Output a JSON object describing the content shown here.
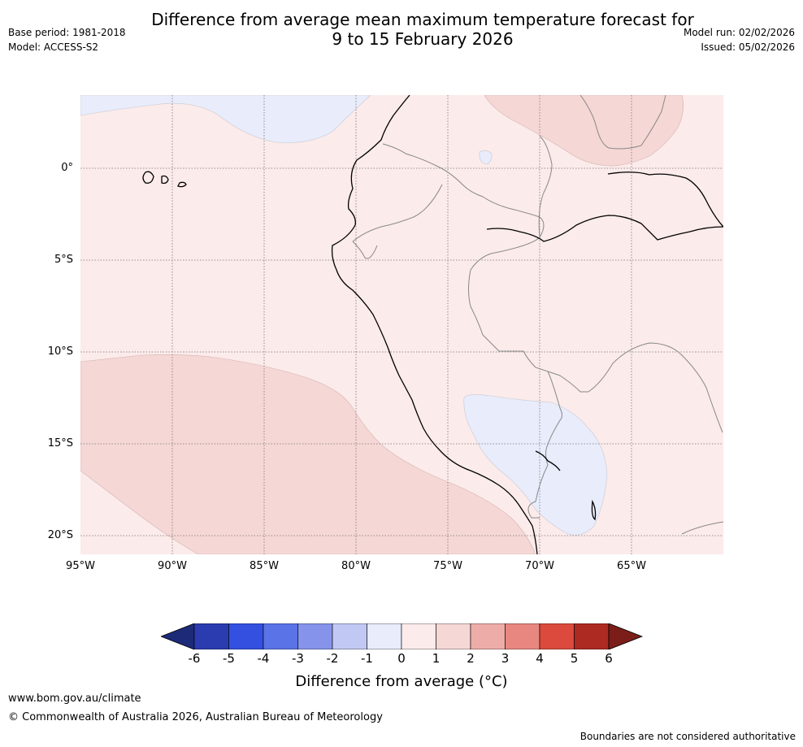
{
  "header": {
    "title_line1": "Difference from average mean maximum temperature forecast for",
    "title_line2": "9 to 15 February 2026",
    "base_period": "Base period: 1981-2018",
    "model": "Model: ACCESS-S2",
    "model_run": "Model run: 02/02/2026",
    "issued": "Issued: 05/02/2026"
  },
  "map": {
    "region": "Western South America",
    "latitude_labels": [
      "0°",
      "5°S",
      "10°S",
      "15°S",
      "20°S"
    ],
    "longitude_labels": [
      "95°W",
      "90°W",
      "85°W",
      "80°W",
      "75°W",
      "70°W",
      "65°W"
    ],
    "colors": {
      "background": "#fbebea",
      "anomaly_0_1": "#fbebea",
      "anomaly_1_2": "#f5d7d5",
      "anomaly_neg1_0": "#e8ecfb",
      "coastline": "#000000",
      "borders": "#888888",
      "grid": "#777777"
    }
  },
  "colorbar": {
    "tick_labels": [
      "-6",
      "-5",
      "-4",
      "-3",
      "-2",
      "-1",
      "0",
      "1",
      "2",
      "3",
      "4",
      "5",
      "6"
    ],
    "bin_colors": [
      "#2a3caf",
      "#3350e0",
      "#5a73e6",
      "#8594ea",
      "#c1c8f3",
      "#e8ecfb",
      "#fbebea",
      "#f5d7d5",
      "#eeaca8",
      "#e8877f",
      "#db4a3d",
      "#ac2a22"
    ],
    "under_color": "#1c2a77",
    "over_color": "#7b1e19",
    "title": "Difference from average (°C)"
  },
  "footer": {
    "url": "www.bom.gov.au/climate",
    "copyright": "© Commonwealth of Australia 2026, Australian Bureau of Meteorology",
    "disclaimer": "Boundaries are not considered authoritative"
  }
}
